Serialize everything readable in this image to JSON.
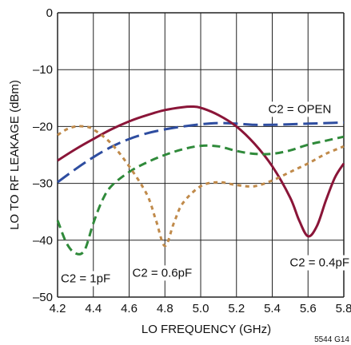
{
  "chart_data": {
    "type": "line",
    "xlabel": "LO FREQUENCY (GHz)",
    "ylabel": "LO TO RF LEAKAGE (dBm)",
    "xlim": [
      4.2,
      5.8
    ],
    "ylim": [
      -50,
      0
    ],
    "xticks": [
      "4.2",
      "4.4",
      "4.6",
      "4.8",
      "5.0",
      "5.2",
      "5.4",
      "5.6",
      "5.8"
    ],
    "yticks": [
      "0",
      "–10",
      "–20",
      "–30",
      "–40",
      "–50"
    ],
    "grid": true,
    "colors": {
      "c2_open": "#2e4da0",
      "c2_0p4pf": "#8a1538",
      "c2_1pf": "#2f8a3a",
      "c2_0p6pf": "#c08a4a",
      "grid": "#222222"
    },
    "series": [
      {
        "name": "C2 = OPEN",
        "color_key": "c2_open",
        "dash": "long",
        "points": [
          [
            4.2,
            -29.8
          ],
          [
            4.3,
            -27.5
          ],
          [
            4.4,
            -25.4
          ],
          [
            4.5,
            -23.6
          ],
          [
            4.6,
            -22.2
          ],
          [
            4.7,
            -21.2
          ],
          [
            4.8,
            -20.5
          ],
          [
            4.9,
            -20.0
          ],
          [
            5.0,
            -19.6
          ],
          [
            5.1,
            -19.4
          ],
          [
            5.2,
            -19.5
          ],
          [
            5.3,
            -19.7
          ],
          [
            5.4,
            -19.7
          ],
          [
            5.5,
            -19.6
          ],
          [
            5.6,
            -19.5
          ],
          [
            5.7,
            -19.4
          ],
          [
            5.8,
            -19.3
          ]
        ]
      },
      {
        "name": "C2 = 0.4pF",
        "color_key": "c2_0p4pf",
        "dash": "solid",
        "points": [
          [
            4.2,
            -26.0
          ],
          [
            4.3,
            -24.0
          ],
          [
            4.4,
            -22.2
          ],
          [
            4.5,
            -20.5
          ],
          [
            4.6,
            -19.1
          ],
          [
            4.7,
            -18.0
          ],
          [
            4.8,
            -17.1
          ],
          [
            4.9,
            -16.6
          ],
          [
            4.95,
            -16.5
          ],
          [
            5.0,
            -16.7
          ],
          [
            5.1,
            -18.0
          ],
          [
            5.2,
            -20.0
          ],
          [
            5.3,
            -23.0
          ],
          [
            5.4,
            -27.0
          ],
          [
            5.5,
            -32.5
          ],
          [
            5.55,
            -36.5
          ],
          [
            5.6,
            -39.3
          ],
          [
            5.65,
            -37.5
          ],
          [
            5.7,
            -33.0
          ],
          [
            5.75,
            -29.0
          ],
          [
            5.8,
            -26.5
          ]
        ]
      },
      {
        "name": "C2 = 1pF",
        "color_key": "c2_1pf",
        "dash": "medium",
        "points": [
          [
            4.2,
            -36.5
          ],
          [
            4.25,
            -40.5
          ],
          [
            4.3,
            -42.3
          ],
          [
            4.35,
            -41.8
          ],
          [
            4.4,
            -37.0
          ],
          [
            4.45,
            -33.0
          ],
          [
            4.5,
            -30.5
          ],
          [
            4.6,
            -28.0
          ],
          [
            4.7,
            -26.3
          ],
          [
            4.8,
            -25.0
          ],
          [
            4.9,
            -24.0
          ],
          [
            5.0,
            -23.4
          ],
          [
            5.1,
            -23.5
          ],
          [
            5.2,
            -24.3
          ],
          [
            5.3,
            -24.8
          ],
          [
            5.4,
            -24.8
          ],
          [
            5.5,
            -24.2
          ],
          [
            5.6,
            -23.2
          ],
          [
            5.7,
            -22.5
          ],
          [
            5.8,
            -21.8
          ]
        ]
      },
      {
        "name": "C2 = 0.6pF",
        "color_key": "c2_0p6pf",
        "dash": "short",
        "points": [
          [
            4.2,
            -21.5
          ],
          [
            4.25,
            -20.5
          ],
          [
            4.3,
            -20.0
          ],
          [
            4.35,
            -20.0
          ],
          [
            4.4,
            -20.5
          ],
          [
            4.5,
            -23.0
          ],
          [
            4.6,
            -27.0
          ],
          [
            4.7,
            -32.0
          ],
          [
            4.75,
            -36.5
          ],
          [
            4.8,
            -41.0
          ],
          [
            4.85,
            -37.0
          ],
          [
            4.9,
            -33.5
          ],
          [
            5.0,
            -30.5
          ],
          [
            5.1,
            -29.8
          ],
          [
            5.2,
            -30.3
          ],
          [
            5.3,
            -30.5
          ],
          [
            5.4,
            -29.5
          ],
          [
            5.5,
            -28.0
          ],
          [
            5.6,
            -26.5
          ],
          [
            5.7,
            -24.8
          ],
          [
            5.8,
            -23.5
          ]
        ]
      }
    ],
    "annotations": [
      {
        "text": "C2 = OPEN",
        "x": 5.36,
        "y": -17.6
      },
      {
        "text": "C2 = 0.4pF",
        "x": 5.48,
        "y": -44.6
      },
      {
        "text": "C2 = 1pF",
        "x": 4.2,
        "y": -47.4
      },
      {
        "text": "C2 = 0.6pF",
        "x": 4.6,
        "y": -46.4
      }
    ],
    "figure_note": "5544 G14"
  }
}
